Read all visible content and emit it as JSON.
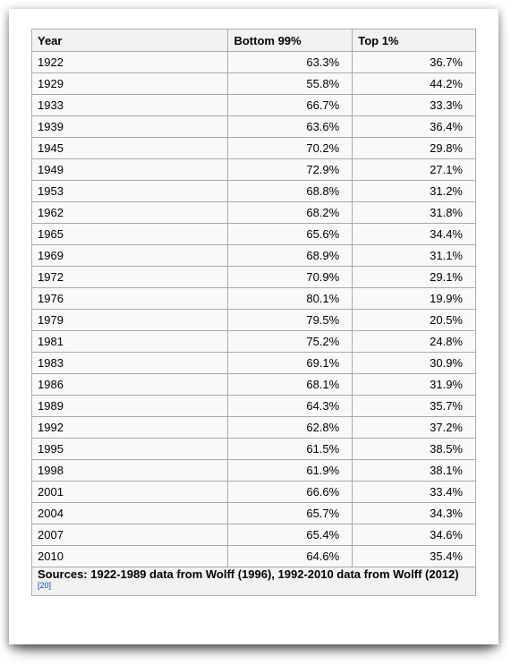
{
  "table": {
    "headers": [
      "Year",
      "Bottom 99%",
      "Top 1%"
    ],
    "rows": [
      [
        "1922",
        "63.3%",
        "36.7%"
      ],
      [
        "1929",
        "55.8%",
        "44.2%"
      ],
      [
        "1933",
        "66.7%",
        "33.3%"
      ],
      [
        "1939",
        "63.6%",
        "36.4%"
      ],
      [
        "1945",
        "70.2%",
        "29.8%"
      ],
      [
        "1949",
        "72.9%",
        "27.1%"
      ],
      [
        "1953",
        "68.8%",
        "31.2%"
      ],
      [
        "1962",
        "68.2%",
        "31.8%"
      ],
      [
        "1965",
        "65.6%",
        "34.4%"
      ],
      [
        "1969",
        "68.9%",
        "31.1%"
      ],
      [
        "1972",
        "70.9%",
        "29.1%"
      ],
      [
        "1976",
        "80.1%",
        "19.9%"
      ],
      [
        "1979",
        "79.5%",
        "20.5%"
      ],
      [
        "1981",
        "75.2%",
        "24.8%"
      ],
      [
        "1983",
        "69.1%",
        "30.9%"
      ],
      [
        "1986",
        "68.1%",
        "31.9%"
      ],
      [
        "1989",
        "64.3%",
        "35.7%"
      ],
      [
        "1992",
        "62.8%",
        "37.2%"
      ],
      [
        "1995",
        "61.5%",
        "38.5%"
      ],
      [
        "1998",
        "61.9%",
        "38.1%"
      ],
      [
        "2001",
        "66.6%",
        "33.4%"
      ],
      [
        "2004",
        "65.7%",
        "34.3%"
      ],
      [
        "2007",
        "65.4%",
        "34.6%"
      ],
      [
        "2010",
        "64.6%",
        "35.4%"
      ]
    ],
    "sources_text": "Sources: 1922-1989 data from Wolff (1996), 1992-2010 data from Wolff (2012)",
    "sources_ref": "[20]"
  },
  "colors": {
    "border": "#aaaaaa",
    "header_bg": "#f2f2f2",
    "cell_bg": "#f9f9f9",
    "link": "#0645ad"
  }
}
